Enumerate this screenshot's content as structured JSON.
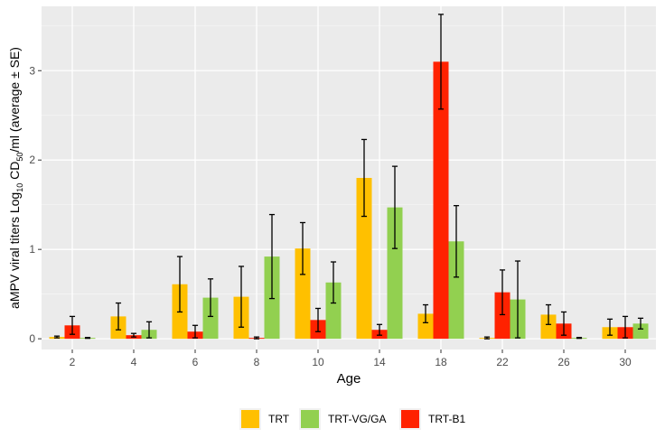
{
  "chart_data": {
    "type": "bar",
    "categories": [
      "2",
      "4",
      "6",
      "8",
      "10",
      "14",
      "18",
      "22",
      "26",
      "30"
    ],
    "xlabel": "Age",
    "ylabel": {
      "prefix": "aMPV viral titers Log",
      "sub1": "10",
      "mid": " CD",
      "sub2": "50",
      "suffix": "/ml (average ± SE)"
    },
    "ylim": [
      -0.12,
      3.72
    ],
    "yticks": [
      0,
      1,
      2,
      3
    ],
    "grid": true,
    "legend_position": "bottom",
    "series": [
      {
        "name": "TRT",
        "color": "#FFC000",
        "values": [
          0.02,
          0.25,
          0.61,
          0.47,
          1.01,
          1.8,
          0.28,
          0.01,
          0.27,
          0.13
        ],
        "errors": [
          0.01,
          0.15,
          0.31,
          0.34,
          0.29,
          0.43,
          0.1,
          0.01,
          0.11,
          0.09
        ]
      },
      {
        "name": "TRT-B1",
        "color": "#FF2200",
        "values": [
          0.15,
          0.04,
          0.08,
          0.01,
          0.21,
          0.1,
          3.1,
          0.52,
          0.17,
          0.13
        ],
        "errors": [
          0.1,
          0.02,
          0.07,
          0.01,
          0.13,
          0.06,
          0.53,
          0.25,
          0.13,
          0.12
        ]
      },
      {
        "name": "TRT-VG/GA",
        "color": "#92D050",
        "values": [
          0.01,
          0.1,
          0.46,
          0.92,
          0.63,
          1.47,
          1.09,
          0.44,
          0.01,
          0.17
        ],
        "errors": [
          0.005,
          0.09,
          0.21,
          0.47,
          0.23,
          0.46,
          0.4,
          0.43,
          0.005,
          0.06
        ]
      }
    ],
    "legend_order": [
      "TRT",
      "TRT-VG/GA",
      "TRT-B1"
    ]
  }
}
